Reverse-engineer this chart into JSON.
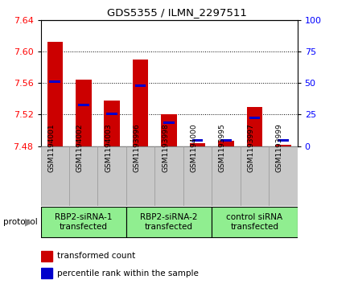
{
  "title": "GDS5355 / ILMN_2297511",
  "samples": [
    "GSM1194001",
    "GSM1194002",
    "GSM1194003",
    "GSM1193996",
    "GSM1193998",
    "GSM1194000",
    "GSM1193995",
    "GSM1193997",
    "GSM1193999"
  ],
  "red_values": [
    7.613,
    7.565,
    7.538,
    7.59,
    7.521,
    7.484,
    7.487,
    7.53,
    7.482
  ],
  "blue_values": [
    7.562,
    7.532,
    7.521,
    7.557,
    7.51,
    7.487,
    7.487,
    7.516,
    7.487
  ],
  "y_min": 7.48,
  "y_max": 7.64,
  "y_ticks": [
    7.48,
    7.52,
    7.56,
    7.6,
    7.64
  ],
  "right_y_ticks": [
    0,
    25,
    50,
    75,
    100
  ],
  "groups": [
    {
      "label": "RBP2-siRNA-1\ntransfected",
      "start": 0,
      "end": 3,
      "color": "#90EE90"
    },
    {
      "label": "RBP2-siRNA-2\ntransfected",
      "start": 3,
      "end": 6,
      "color": "#90EE90"
    },
    {
      "label": "control siRNA\ntransfected",
      "start": 6,
      "end": 9,
      "color": "#90EE90"
    }
  ],
  "bar_color": "#CC0000",
  "blue_color": "#0000CC",
  "bar_width": 0.55,
  "sample_bg_color": "#C8C8C8",
  "legend_red": "transformed count",
  "legend_blue": "percentile rank within the sample",
  "protocol_label": "protocol"
}
